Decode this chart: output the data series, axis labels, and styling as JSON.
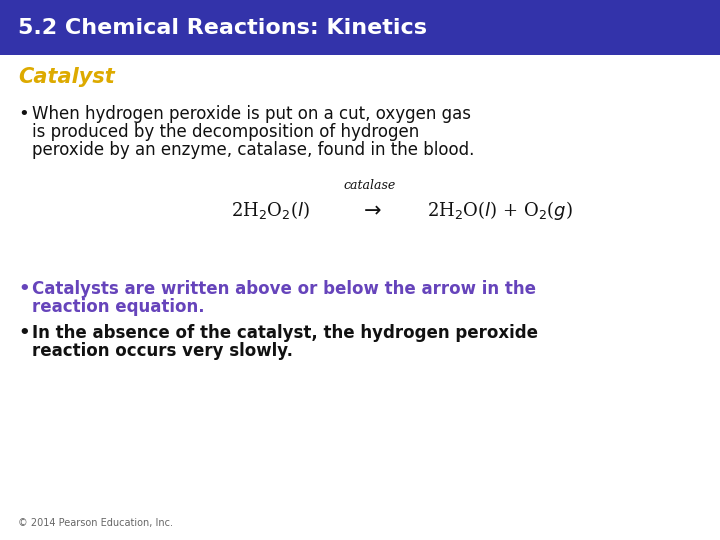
{
  "title": "5.2 Chemical Reactions: Kinetics",
  "title_bg_color": "#3333aa",
  "title_text_color": "#ffffff",
  "title_fontsize": 16,
  "subtitle": "Catalyst",
  "subtitle_color": "#ddaa00",
  "subtitle_fontsize": 15,
  "bg_color": "#ffffff",
  "bullet1_line1": "When hydrogen peroxide is put on a cut, oxygen gas",
  "bullet1_line2": "is produced by the decomposition of hydrogen",
  "bullet1_line3": "peroxide by an enzyme, catalase, found in the blood.",
  "bullet1_color": "#111111",
  "bullet1_fontsize": 12,
  "equation_label": "catalase",
  "equation_fontsize": 13,
  "equation_color": "#111111",
  "bullet2_line1": "Catalysts are written above or below the arrow in the",
  "bullet2_line2": "reaction equation.",
  "bullet2_color": "#6644bb",
  "bullet2_fontsize": 12,
  "bullet3_line1": "In the absence of the catalyst, the hydrogen peroxide",
  "bullet3_line2": "reaction occurs very slowly.",
  "bullet3_color": "#111111",
  "bullet3_fontsize": 12,
  "footer": "© 2014 Pearson Education, Inc.",
  "footer_color": "#666666",
  "footer_fontsize": 7
}
